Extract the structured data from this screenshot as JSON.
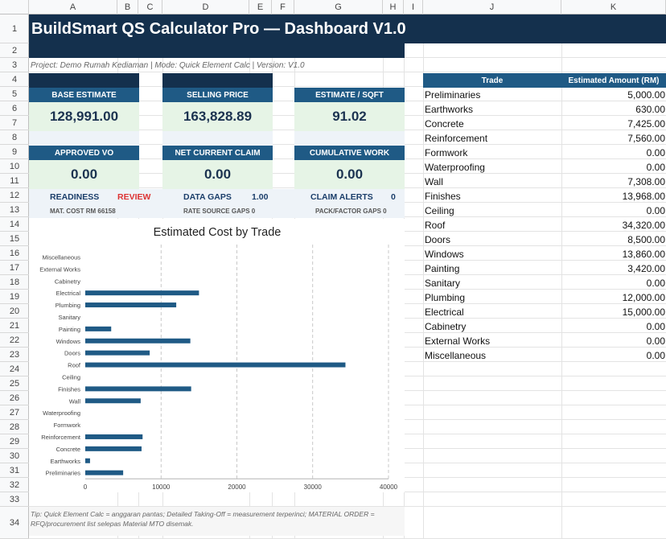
{
  "columns": [
    "A",
    "B",
    "C",
    "D",
    "E",
    "F",
    "G",
    "H",
    "I",
    "J",
    "K"
  ],
  "rows": [
    "1",
    "2",
    "3",
    "4",
    "5",
    "6",
    "7",
    "8",
    "9",
    "10",
    "11",
    "12",
    "13",
    "14",
    "15",
    "16",
    "17",
    "18",
    "19",
    "20",
    "21",
    "22",
    "23",
    "24",
    "25",
    "26",
    "27",
    "28",
    "29",
    "30",
    "31",
    "32",
    "33",
    "34"
  ],
  "title": "BuildSmart QS Calculator Pro — Dashboard V1.0",
  "meta": "Project: Demo Rumah Kediaman  |  Mode: Quick Element Calc  |  Version: V1.0",
  "cards": {
    "base_estimate": {
      "label": "BASE ESTIMATE",
      "value": "128,991.00"
    },
    "selling_price": {
      "label": "SELLING PRICE",
      "value": "163,828.89"
    },
    "estimate_sqft": {
      "label": "ESTIMATE / SQFT",
      "value": "91.02"
    },
    "approved_vo": {
      "label": "APPROVED VO",
      "value": "0.00"
    },
    "net_claim": {
      "label": "NET CURRENT CLAIM",
      "value": "0.00"
    },
    "cumulative": {
      "label": "CUMULATIVE WORK",
      "value": "0.00"
    }
  },
  "indicators": {
    "readiness_label": "READINESS",
    "readiness_value": "REVIEW",
    "gaps_label": "DATA GAPS",
    "gaps_value": "1.00",
    "alerts_label": "CLAIM ALERTS",
    "alerts_value": "0",
    "mat_cost": "MAT. COST RM 66158",
    "rate_gaps": "RATE SOURCE GAPS 0",
    "pack_gaps": "PACK/FACTOR GAPS 0"
  },
  "table": {
    "header_trade": "Trade",
    "header_amount": "Estimated Amount (RM)",
    "rows": [
      {
        "trade": "Preliminaries",
        "amount": "5,000.00"
      },
      {
        "trade": "Earthworks",
        "amount": "630.00"
      },
      {
        "trade": "Concrete",
        "amount": "7,425.00"
      },
      {
        "trade": "Reinforcement",
        "amount": "7,560.00"
      },
      {
        "trade": "Formwork",
        "amount": "0.00"
      },
      {
        "trade": "Waterproofing",
        "amount": "0.00"
      },
      {
        "trade": "Wall",
        "amount": "7,308.00"
      },
      {
        "trade": "Finishes",
        "amount": "13,968.00"
      },
      {
        "trade": "Ceiling",
        "amount": "0.00"
      },
      {
        "trade": "Roof",
        "amount": "34,320.00"
      },
      {
        "trade": "Doors",
        "amount": "8,500.00"
      },
      {
        "trade": "Windows",
        "amount": "13,860.00"
      },
      {
        "trade": "Painting",
        "amount": "3,420.00"
      },
      {
        "trade": "Sanitary",
        "amount": "0.00"
      },
      {
        "trade": "Plumbing",
        "amount": "12,000.00"
      },
      {
        "trade": "Electrical",
        "amount": "15,000.00"
      },
      {
        "trade": "Cabinetry",
        "amount": "0.00"
      },
      {
        "trade": "External Works",
        "amount": "0.00"
      },
      {
        "trade": "Miscellaneous",
        "amount": "0.00"
      }
    ]
  },
  "chart_data": {
    "type": "bar",
    "orientation": "horizontal",
    "title": "Estimated Cost by Trade",
    "categories": [
      "Miscellaneous",
      "External Works",
      "Cabinetry",
      "Electrical",
      "Plumbing",
      "Sanitary",
      "Painting",
      "Windows",
      "Doors",
      "Roof",
      "Ceiling",
      "Finishes",
      "Wall",
      "Waterproofing",
      "Formwork",
      "Reinforcement",
      "Concrete",
      "Earthworks",
      "Preliminaries"
    ],
    "values": [
      0,
      0,
      0,
      15000,
      12000,
      0,
      3420,
      13860,
      8500,
      34320,
      0,
      13968,
      7308,
      0,
      0,
      7560,
      7425,
      630,
      5000
    ],
    "xlim": [
      0,
      40000
    ],
    "xticks": [
      "0",
      "10000",
      "20000",
      "30000",
      "40000"
    ],
    "xlabel": "",
    "ylabel": "",
    "grid": true,
    "bar_color": "#1f5a85"
  },
  "tip": "Tip: Quick Element Calc = anggaran pantas; Detailed Taking-Off = measurement terperinci; MATERIAL ORDER = RFQ/procurement list selepas Material MTO disemak."
}
